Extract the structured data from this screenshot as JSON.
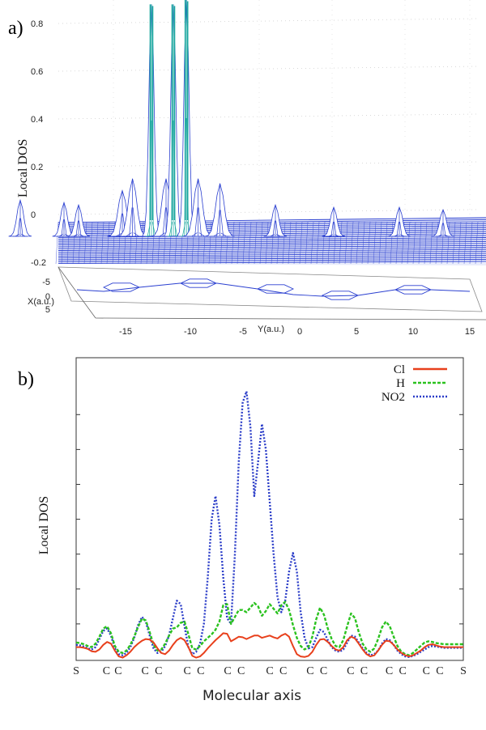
{
  "panel_a": {
    "label": "a)",
    "ylabel": "Local DOS",
    "xlabel": "X(a.u.)",
    "ylabel2": "Y(a.u.)"
  },
  "panel_b": {
    "label": "b)",
    "ylabel": "Local DOS",
    "xlabel": "Molecular axis"
  },
  "colors": {
    "surface": "#2a3fd0",
    "peak": "#1ea8a0",
    "cl": "#e8401c",
    "h": "#2bc21f",
    "no2": "#2a3cc8"
  },
  "chart_data": [
    {
      "type": "area",
      "title": "",
      "xlabel": "X(a.u.)",
      "ylabel": "Local DOS",
      "zlabel": "Y(a.u.)",
      "ylim": [
        -0.2,
        0.9
      ],
      "y_ticks": [
        "0.8",
        "0.6",
        "0.4",
        "0.2",
        "0",
        "-0.2"
      ],
      "y_tick_values": [
        0.8,
        0.6,
        0.4,
        0.2,
        0,
        -0.2
      ],
      "x_ticks": [
        "-5",
        "0",
        "5"
      ],
      "x_tick_values": [
        -5,
        0,
        5
      ],
      "yaxis_ticks": [
        "-15",
        "-10",
        "-5",
        "0",
        "5",
        "10",
        "15"
      ],
      "yaxis_tick_values": [
        -15,
        -10,
        -5,
        0,
        5,
        10,
        15
      ],
      "peaks": [
        {
          "y": -16,
          "height": 0.06
        },
        {
          "y": -13,
          "height": 0.05
        },
        {
          "y": -12,
          "height": 0.04
        },
        {
          "y": -9,
          "height": 0.1
        },
        {
          "y": -8.3,
          "height": 0.15
        },
        {
          "y": -7,
          "height": 0.88
        },
        {
          "y": -6,
          "height": 0.15
        },
        {
          "y": -5.5,
          "height": 0.88
        },
        {
          "y": -4.6,
          "height": 0.9
        },
        {
          "y": -3.8,
          "height": 0.15
        },
        {
          "y": -2.3,
          "height": 0.13
        },
        {
          "y": 1.5,
          "height": 0.04
        },
        {
          "y": 5.5,
          "height": 0.03
        },
        {
          "y": 10,
          "height": 0.03
        },
        {
          "y": 13,
          "height": 0.02
        }
      ]
    },
    {
      "type": "line",
      "xlabel": "Molecular axis",
      "ylabel": "Local DOS",
      "categories": [
        "S",
        "C",
        "C",
        "C",
        "C",
        "C",
        "C",
        "C",
        "C",
        "C",
        "C",
        "C",
        "C",
        "C",
        "C",
        "C",
        "C",
        "C",
        "C",
        "S"
      ],
      "x": [
        0,
        0.1,
        0.2,
        0.3,
        0.4,
        0.5,
        0.6,
        0.7,
        0.8,
        0.9,
        1.0,
        1.1,
        1.2,
        1.3,
        1.4,
        1.5,
        1.6,
        1.7,
        1.8,
        1.9,
        2.0,
        2.1,
        2.2,
        2.3,
        2.4,
        2.5,
        2.6,
        2.7,
        2.8,
        2.9,
        3.0,
        3.1,
        3.2,
        3.3,
        3.4,
        3.5,
        3.6,
        3.7,
        3.8,
        3.9,
        4.0,
        4.1,
        4.2,
        4.3,
        4.4,
        4.5,
        4.6,
        4.7,
        4.8,
        4.9,
        5.0,
        5.1,
        5.2,
        5.3,
        5.4,
        5.5,
        5.6,
        5.7,
        5.8,
        5.9,
        6.0,
        6.1,
        6.2,
        6.3,
        6.4,
        6.5,
        6.6,
        6.7,
        6.8,
        6.9,
        7.0,
        7.1,
        7.2,
        7.3,
        7.4,
        7.5,
        7.6,
        7.7,
        7.8,
        7.9,
        8.0,
        8.1,
        8.2,
        8.3,
        8.4,
        8.5,
        8.6,
        8.7,
        8.8,
        8.9,
        9.0,
        9.1,
        9.2,
        9.3,
        9.4,
        9.5,
        9.6,
        9.7,
        9.8,
        9.9,
        10.0
      ],
      "series": [
        {
          "name": "Cl",
          "values": [
            0.2,
            0.2,
            0.19,
            0.17,
            0.13,
            0.12,
            0.16,
            0.24,
            0.29,
            0.26,
            0.14,
            0.04,
            0.02,
            0.06,
            0.12,
            0.2,
            0.26,
            0.31,
            0.34,
            0.33,
            0.28,
            0.18,
            0.1,
            0.08,
            0.14,
            0.24,
            0.32,
            0.36,
            0.32,
            0.2,
            0.05,
            0.02,
            0.04,
            0.1,
            0.18,
            0.25,
            0.32,
            0.38,
            0.44,
            0.43,
            0.3,
            0.34,
            0.38,
            0.37,
            0.34,
            0.37,
            0.4,
            0.4,
            0.36,
            0.38,
            0.4,
            0.37,
            0.35,
            0.4,
            0.43,
            0.38,
            0.22,
            0.08,
            0.04,
            0.03,
            0.05,
            0.12,
            0.24,
            0.33,
            0.34,
            0.29,
            0.22,
            0.16,
            0.14,
            0.2,
            0.32,
            0.38,
            0.35,
            0.26,
            0.16,
            0.08,
            0.04,
            0.06,
            0.14,
            0.24,
            0.31,
            0.3,
            0.24,
            0.16,
            0.1,
            0.06,
            0.04,
            0.06,
            0.1,
            0.14,
            0.2,
            0.24,
            0.25,
            0.23,
            0.21,
            0.2,
            0.2,
            0.2,
            0.2,
            0.2,
            0.2
          ]
        },
        {
          "name": "H",
          "values": [
            0.28,
            0.27,
            0.25,
            0.22,
            0.2,
            0.26,
            0.38,
            0.52,
            0.56,
            0.44,
            0.22,
            0.12,
            0.1,
            0.14,
            0.24,
            0.38,
            0.55,
            0.69,
            0.66,
            0.46,
            0.24,
            0.14,
            0.16,
            0.26,
            0.4,
            0.52,
            0.54,
            0.62,
            0.64,
            0.42,
            0.18,
            0.16,
            0.22,
            0.3,
            0.36,
            0.42,
            0.5,
            0.64,
            0.92,
            0.94,
            0.6,
            0.72,
            0.84,
            0.84,
            0.8,
            0.88,
            0.96,
            0.9,
            0.74,
            0.82,
            0.94,
            0.86,
            0.78,
            0.92,
            0.98,
            0.84,
            0.58,
            0.36,
            0.22,
            0.16,
            0.2,
            0.38,
            0.68,
            0.88,
            0.76,
            0.52,
            0.34,
            0.22,
            0.2,
            0.32,
            0.56,
            0.78,
            0.7,
            0.46,
            0.26,
            0.16,
            0.12,
            0.18,
            0.34,
            0.54,
            0.64,
            0.56,
            0.38,
            0.22,
            0.12,
            0.08,
            0.06,
            0.1,
            0.16,
            0.22,
            0.28,
            0.3,
            0.29,
            0.27,
            0.26,
            0.25,
            0.25,
            0.25,
            0.25,
            0.25,
            0.25
          ]
        },
        {
          "name": "NO2",
          "values": [
            0.24,
            0.23,
            0.21,
            0.18,
            0.16,
            0.2,
            0.34,
            0.48,
            0.52,
            0.4,
            0.18,
            0.08,
            0.06,
            0.1,
            0.2,
            0.36,
            0.58,
            0.72,
            0.64,
            0.4,
            0.18,
            0.1,
            0.12,
            0.22,
            0.4,
            0.7,
            1.0,
            0.94,
            0.56,
            0.2,
            0.08,
            0.12,
            0.26,
            0.6,
            1.4,
            2.4,
            2.8,
            2.3,
            1.4,
            0.7,
            0.6,
            1.8,
            3.4,
            4.4,
            4.6,
            4.0,
            2.8,
            3.4,
            4.04,
            3.6,
            2.7,
            1.8,
            1.06,
            0.8,
            1.0,
            1.5,
            1.82,
            1.5,
            0.8,
            0.36,
            0.18,
            0.2,
            0.36,
            0.5,
            0.46,
            0.32,
            0.2,
            0.14,
            0.12,
            0.16,
            0.28,
            0.4,
            0.38,
            0.28,
            0.18,
            0.1,
            0.06,
            0.08,
            0.14,
            0.26,
            0.34,
            0.32,
            0.24,
            0.14,
            0.08,
            0.04,
            0.03,
            0.05,
            0.08,
            0.12,
            0.16,
            0.2,
            0.22,
            0.21,
            0.2,
            0.19,
            0.19,
            0.19,
            0.19,
            0.19,
            0.19
          ]
        }
      ],
      "legend_position": "top-right"
    }
  ]
}
